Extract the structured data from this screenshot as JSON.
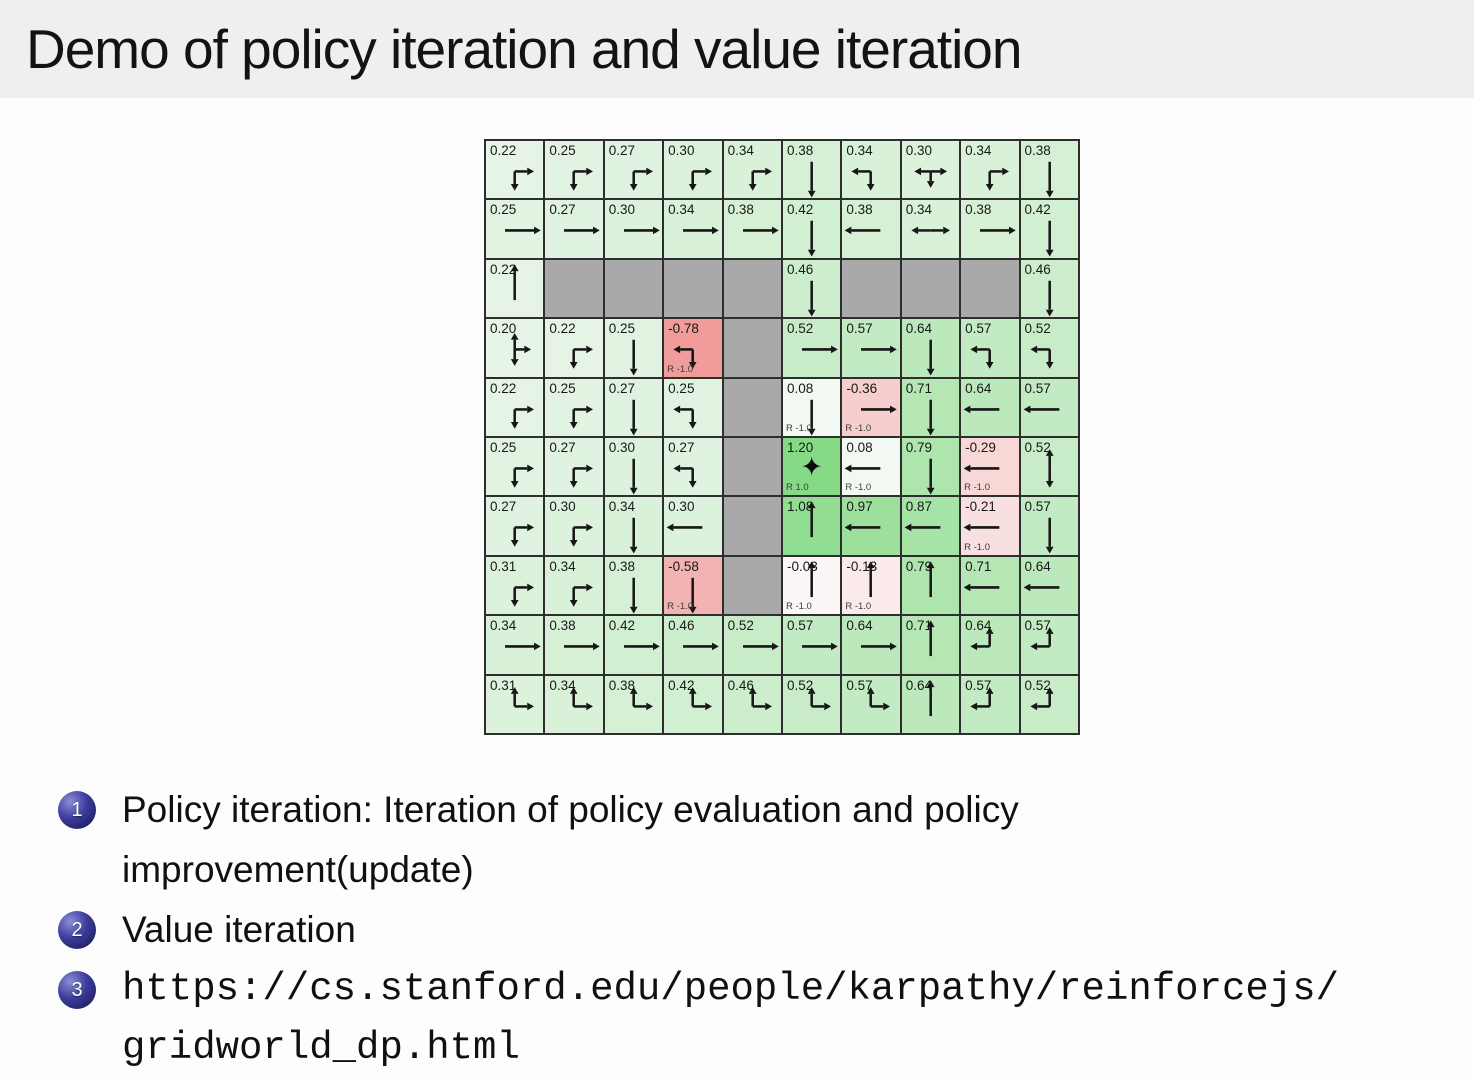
{
  "slide": {
    "title": "Demo of policy iteration and value iteration"
  },
  "bullets": [
    {
      "number": "1",
      "mono": false,
      "lines": [
        "Policy iteration: Iteration of policy evaluation and policy",
        "improvement(update)"
      ]
    },
    {
      "number": "2",
      "mono": false,
      "lines": [
        "Value iteration"
      ]
    },
    {
      "number": "3",
      "mono": true,
      "lines": [
        "https://cs.stanford.edu/people/karpathy/reinforcejs/",
        "gridworld_dp.html"
      ]
    }
  ],
  "colors": {
    "title_bar_bg": "#f0efef",
    "wall": "#a9a9a9",
    "grid_line": "#2e2e2e",
    "bullet_ball": "#2b2b80",
    "positive_cell_max": "#8adf8a",
    "negative_cell_max": "#f09e9e"
  },
  "gridworld": {
    "rows": 10,
    "cols": 10,
    "goal_icon": "✦",
    "cells": [
      {
        "v": "0.22",
        "a": [
          "R",
          "D"
        ]
      },
      {
        "v": "0.25",
        "a": [
          "R",
          "D"
        ]
      },
      {
        "v": "0.27",
        "a": [
          "R",
          "D"
        ]
      },
      {
        "v": "0.30",
        "a": [
          "R",
          "D"
        ]
      },
      {
        "v": "0.34",
        "a": [
          "R",
          "D"
        ]
      },
      {
        "v": "0.38",
        "a": [
          "D"
        ]
      },
      {
        "v": "0.34",
        "a": [
          "L",
          "D"
        ]
      },
      {
        "v": "0.30",
        "a": [
          "L",
          "R",
          "D"
        ]
      },
      {
        "v": "0.34",
        "a": [
          "R",
          "D"
        ]
      },
      {
        "v": "0.38",
        "a": [
          "D"
        ]
      },
      {
        "v": "0.25",
        "a": [
          "R"
        ]
      },
      {
        "v": "0.27",
        "a": [
          "R"
        ]
      },
      {
        "v": "0.30",
        "a": [
          "R"
        ]
      },
      {
        "v": "0.34",
        "a": [
          "R"
        ]
      },
      {
        "v": "0.38",
        "a": [
          "R"
        ]
      },
      {
        "v": "0.42",
        "a": [
          "D"
        ]
      },
      {
        "v": "0.38",
        "a": [
          "L"
        ]
      },
      {
        "v": "0.34",
        "a": [
          "L",
          "R"
        ]
      },
      {
        "v": "0.38",
        "a": [
          "R"
        ]
      },
      {
        "v": "0.42",
        "a": [
          "D"
        ]
      },
      {
        "v": "0.22",
        "a": [
          "U"
        ]
      },
      {
        "wall": true
      },
      {
        "wall": true
      },
      {
        "wall": true
      },
      {
        "wall": true
      },
      {
        "v": "0.46",
        "a": [
          "D"
        ]
      },
      {
        "wall": true
      },
      {
        "wall": true
      },
      {
        "wall": true
      },
      {
        "v": "0.46",
        "a": [
          "D"
        ]
      },
      {
        "v": "0.20",
        "a": [
          "U",
          "R",
          "D"
        ]
      },
      {
        "v": "0.22",
        "a": [
          "R",
          "D"
        ]
      },
      {
        "v": "0.25",
        "a": [
          "D"
        ]
      },
      {
        "v": "-0.78",
        "a": [
          "L",
          "D"
        ],
        "r": "R -1.0"
      },
      {
        "wall": true
      },
      {
        "v": "0.52",
        "a": [
          "R"
        ]
      },
      {
        "v": "0.57",
        "a": [
          "R"
        ]
      },
      {
        "v": "0.64",
        "a": [
          "D"
        ]
      },
      {
        "v": "0.57",
        "a": [
          "L",
          "D"
        ]
      },
      {
        "v": "0.52",
        "a": [
          "L",
          "D"
        ]
      },
      {
        "v": "0.22",
        "a": [
          "R",
          "D"
        ]
      },
      {
        "v": "0.25",
        "a": [
          "R",
          "D"
        ]
      },
      {
        "v": "0.27",
        "a": [
          "D"
        ]
      },
      {
        "v": "0.25",
        "a": [
          "L",
          "D"
        ]
      },
      {
        "wall": true
      },
      {
        "v": "0.08",
        "a": [
          "D"
        ],
        "r": "R -1.0"
      },
      {
        "v": "-0.36",
        "a": [
          "R"
        ],
        "r": "R -1.0"
      },
      {
        "v": "0.71",
        "a": [
          "D"
        ]
      },
      {
        "v": "0.64",
        "a": [
          "L"
        ]
      },
      {
        "v": "0.57",
        "a": [
          "L"
        ]
      },
      {
        "v": "0.25",
        "a": [
          "R",
          "D"
        ]
      },
      {
        "v": "0.27",
        "a": [
          "R",
          "D"
        ]
      },
      {
        "v": "0.30",
        "a": [
          "D"
        ]
      },
      {
        "v": "0.27",
        "a": [
          "L",
          "D"
        ]
      },
      {
        "wall": true
      },
      {
        "v": "1.20",
        "goal": true,
        "r": "R 1.0"
      },
      {
        "v": "0.08",
        "a": [
          "L"
        ],
        "r": "R -1.0"
      },
      {
        "v": "0.79",
        "a": [
          "D"
        ]
      },
      {
        "v": "-0.29",
        "a": [
          "L"
        ],
        "r": "R -1.0"
      },
      {
        "v": "0.52",
        "a": [
          "U",
          "D"
        ]
      },
      {
        "v": "0.27",
        "a": [
          "R",
          "D"
        ]
      },
      {
        "v": "0.30",
        "a": [
          "R",
          "D"
        ]
      },
      {
        "v": "0.34",
        "a": [
          "D"
        ]
      },
      {
        "v": "0.30",
        "a": [
          "L"
        ]
      },
      {
        "wall": true
      },
      {
        "v": "1.08",
        "a": [
          "U"
        ]
      },
      {
        "v": "0.97",
        "a": [
          "L"
        ]
      },
      {
        "v": "0.87",
        "a": [
          "L"
        ]
      },
      {
        "v": "-0.21",
        "a": [
          "L"
        ],
        "r": "R -1.0"
      },
      {
        "v": "0.57",
        "a": [
          "D"
        ]
      },
      {
        "v": "0.31",
        "a": [
          "R",
          "D"
        ]
      },
      {
        "v": "0.34",
        "a": [
          "R",
          "D"
        ]
      },
      {
        "v": "0.38",
        "a": [
          "D"
        ]
      },
      {
        "v": "-0.58",
        "a": [
          "D"
        ],
        "r": "R -1.0"
      },
      {
        "wall": true
      },
      {
        "v": "-0.03",
        "a": [
          "U"
        ],
        "r": "R -1.0"
      },
      {
        "v": "-0.13",
        "a": [
          "U"
        ],
        "r": "R -1.0"
      },
      {
        "v": "0.79",
        "a": [
          "U"
        ]
      },
      {
        "v": "0.71",
        "a": [
          "L"
        ]
      },
      {
        "v": "0.64",
        "a": [
          "L"
        ]
      },
      {
        "v": "0.34",
        "a": [
          "R"
        ]
      },
      {
        "v": "0.38",
        "a": [
          "R"
        ]
      },
      {
        "v": "0.42",
        "a": [
          "R"
        ]
      },
      {
        "v": "0.46",
        "a": [
          "R"
        ]
      },
      {
        "v": "0.52",
        "a": [
          "R"
        ]
      },
      {
        "v": "0.57",
        "a": [
          "R"
        ]
      },
      {
        "v": "0.64",
        "a": [
          "R"
        ]
      },
      {
        "v": "0.71",
        "a": [
          "U"
        ]
      },
      {
        "v": "0.64",
        "a": [
          "U",
          "L"
        ]
      },
      {
        "v": "0.57",
        "a": [
          "U",
          "L"
        ]
      },
      {
        "v": "0.31",
        "a": [
          "U",
          "R"
        ]
      },
      {
        "v": "0.34",
        "a": [
          "U",
          "R"
        ]
      },
      {
        "v": "0.38",
        "a": [
          "U",
          "R"
        ]
      },
      {
        "v": "0.42",
        "a": [
          "U",
          "R"
        ]
      },
      {
        "v": "0.46",
        "a": [
          "U",
          "R"
        ]
      },
      {
        "v": "0.52",
        "a": [
          "U",
          "R"
        ]
      },
      {
        "v": "0.57",
        "a": [
          "U",
          "R"
        ]
      },
      {
        "v": "0.64",
        "a": [
          "U"
        ]
      },
      {
        "v": "0.57",
        "a": [
          "U",
          "L"
        ]
      },
      {
        "v": "0.52",
        "a": [
          "U",
          "L"
        ]
      }
    ]
  }
}
